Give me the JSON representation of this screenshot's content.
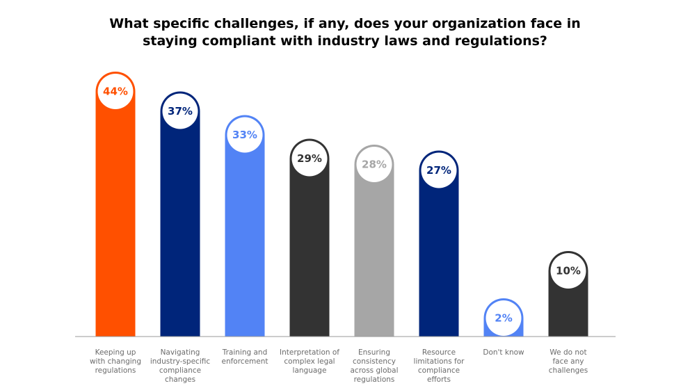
{
  "chart_data": {
    "type": "bar",
    "title": "What specific challenges, if any, does your organization face in staying compliant with industry laws and regulations?",
    "categories": [
      "Keeping up with changing regulations",
      "Navigating industry-specific compliance changes",
      "Training and enforcement",
      "Interpretation of complex legal language",
      "Ensuring consistency across global regulations",
      "Resource limitations for compliance efforts",
      "Don't know",
      "We do not face any challenges"
    ],
    "category_lines": [
      [
        "Keeping up",
        "with changing",
        "regulations"
      ],
      [
        "Navigating",
        "industry-specific",
        "compliance",
        "changes"
      ],
      [
        "Training and",
        "enforcement"
      ],
      [
        "Interpretation of",
        "complex legal",
        "language"
      ],
      [
        "Ensuring",
        "consistency",
        "across global",
        "regulations"
      ],
      [
        "Resource",
        "limitations for",
        "compliance",
        "efforts"
      ],
      [
        "Don't know"
      ],
      [
        "We do not",
        "face any",
        "challenges"
      ]
    ],
    "values": [
      44,
      37,
      33,
      29,
      28,
      27,
      2,
      10
    ],
    "data_labels": [
      "44%",
      "37%",
      "33%",
      "29%",
      "28%",
      "27%",
      "2%",
      "10%"
    ],
    "colors": [
      "#FF5000",
      "#00257A",
      "#5283F5",
      "#333333",
      "#A6A6A6",
      "#00257A",
      "#5283F5",
      "#333333"
    ],
    "unit": "%",
    "grid": false,
    "legend": "none",
    "xlabel": "",
    "ylabel": ""
  }
}
